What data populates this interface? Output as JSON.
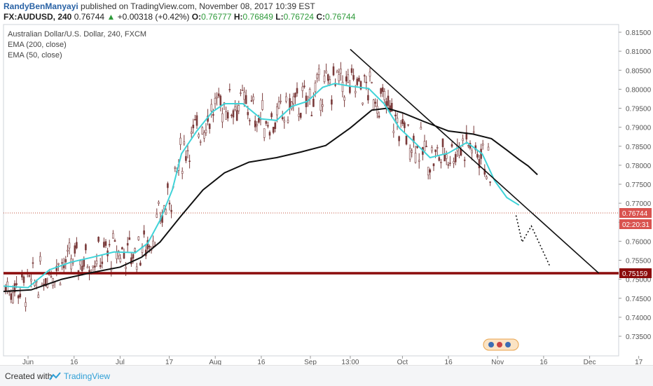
{
  "header": {
    "author": "RandyBenManyayi",
    "published_text": "published on TradingView.com, November 08, 2017 10:39 EST",
    "symbol": "FX:AUDUSD, 240",
    "last": "0.76744",
    "change_arrow": "▲",
    "change": "+0.00318 (+0.42%)",
    "open_label": "O:",
    "open": "0.76777",
    "high_label": "H:",
    "high": "0.76849",
    "low_label": "L:",
    "low": "0.76724",
    "close_label": "C:",
    "close": "0.76744"
  },
  "legend": {
    "title": "Australian Dollar/U.S. Dollar, 240, FXCM",
    "ema200": "EMA (200, close)",
    "ema50": "EMA (50, close)"
  },
  "footer": {
    "created_with": "Created with",
    "brand": "TradingView"
  },
  "colors": {
    "candle": "#7a3b3b",
    "ema50": "#3fd3d8",
    "ema200": "#111111",
    "support_line": "#8b0c0c",
    "price_line": "#c0553f",
    "price_label_bg": "#d9534f",
    "axis_text": "#555555",
    "brand_blue": "#2e9fd6"
  },
  "chart_data": {
    "type": "line",
    "series": [
      {
        "name": "EMA (50, close)",
        "x": [
          "2017-05-24",
          "2017-06-01",
          "2017-06-08",
          "2017-06-15",
          "2017-06-22",
          "2017-06-29",
          "2017-07-06",
          "2017-07-10",
          "2017-07-14",
          "2017-07-18",
          "2017-07-21",
          "2017-07-26",
          "2017-07-31",
          "2017-08-04",
          "2017-08-10",
          "2017-08-16",
          "2017-08-21",
          "2017-08-26",
          "2017-08-31",
          "2017-09-05",
          "2017-09-09",
          "2017-09-14",
          "2017-09-20",
          "2017-09-25",
          "2017-09-30",
          "2017-10-05",
          "2017-10-10",
          "2017-10-16",
          "2017-10-22",
          "2017-10-27",
          "2017-10-31",
          "2017-11-04",
          "2017-11-08"
        ],
        "values": [
          0.7482,
          0.7478,
          0.7525,
          0.7545,
          0.7558,
          0.7572,
          0.757,
          0.7595,
          0.7655,
          0.7735,
          0.783,
          0.789,
          0.794,
          0.7962,
          0.7962,
          0.7922,
          0.7918,
          0.7955,
          0.7968,
          0.8005,
          0.8015,
          0.8008,
          0.8002,
          0.7962,
          0.7898,
          0.786,
          0.782,
          0.7832,
          0.786,
          0.783,
          0.776,
          0.7715,
          0.7695
        ]
      },
      {
        "name": "EMA (200, close)",
        "x": [
          "2017-05-24",
          "2017-06-02",
          "2017-06-12",
          "2017-06-22",
          "2017-07-01",
          "2017-07-08",
          "2017-07-14",
          "2017-07-21",
          "2017-07-28",
          "2017-08-04",
          "2017-08-12",
          "2017-08-21",
          "2017-08-29",
          "2017-09-06",
          "2017-09-14",
          "2017-09-21",
          "2017-09-26",
          "2017-10-01",
          "2017-10-08",
          "2017-10-16",
          "2017-10-24",
          "2017-10-30",
          "2017-11-04",
          "2017-11-08",
          "2017-11-11",
          "2017-11-14"
        ],
        "values": [
          0.7468,
          0.7472,
          0.75,
          0.7518,
          0.7532,
          0.7558,
          0.7598,
          0.7668,
          0.7735,
          0.778,
          0.7808,
          0.782,
          0.7835,
          0.7852,
          0.7898,
          0.7945,
          0.795,
          0.7938,
          0.7915,
          0.789,
          0.7882,
          0.787,
          0.784,
          0.7815,
          0.7798,
          0.7775
        ]
      }
    ],
    "lines": [
      {
        "label": "support",
        "y": 0.75159
      },
      {
        "label": "last_price",
        "y": 0.76744
      },
      {
        "label": "downtrend",
        "x": [
          "2017-09-14",
          "2017-12-04"
        ],
        "values": [
          0.8105,
          0.75159
        ]
      },
      {
        "label": "projection",
        "x": [
          "2017-11-07",
          "2017-11-09",
          "2017-11-12",
          "2017-11-18"
        ],
        "values": [
          0.7668,
          0.7598,
          0.764,
          0.7535
        ]
      }
    ],
    "price_labels": [
      "0.76744",
      "02:20:31",
      "0.75159"
    ],
    "xticks": [
      "Jun",
      "16",
      "Jul",
      "17",
      "Aug",
      "16",
      "Sep",
      "13:00",
      "Oct",
      "16",
      "Nov",
      "16",
      "Dec",
      "17"
    ],
    "yticks": [
      "0.81500",
      "0.81000",
      "0.80500",
      "0.80000",
      "0.79500",
      "0.79000",
      "0.78500",
      "0.78000",
      "0.77500",
      "0.77000",
      "0.76500",
      "0.76000",
      "0.75500",
      "0.75000",
      "0.74500",
      "0.74000",
      "0.73500"
    ],
    "ylim": [
      0.732,
      0.817
    ],
    "grid": false
  }
}
